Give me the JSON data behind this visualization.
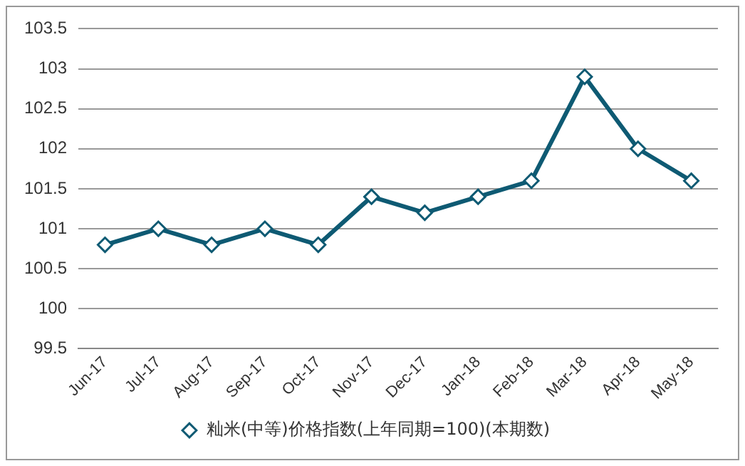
{
  "chart_data": {
    "type": "line",
    "categories": [
      "Jun-17",
      "Jul-17",
      "Aug-17",
      "Sep-17",
      "Oct-17",
      "Nov-17",
      "Dec-17",
      "Jan-18",
      "Feb-18",
      "Mar-18",
      "Apr-18",
      "May-18"
    ],
    "series": [
      {
        "name": "籼米(中等)价格指数(上年同期=100)(本期数)",
        "color": "#0e5a73",
        "values": [
          100.8,
          101.0,
          100.8,
          101.0,
          100.8,
          101.4,
          101.2,
          101.4,
          101.6,
          102.9,
          102.0,
          101.6
        ]
      }
    ],
    "ylim": [
      99.5,
      103.5
    ],
    "yticks": [
      99.5,
      100,
      100.5,
      101,
      101.5,
      102,
      102.5,
      103,
      103.5
    ],
    "grid": "y",
    "legend": "bottom",
    "marker": "diamond",
    "line_style": "solid"
  }
}
